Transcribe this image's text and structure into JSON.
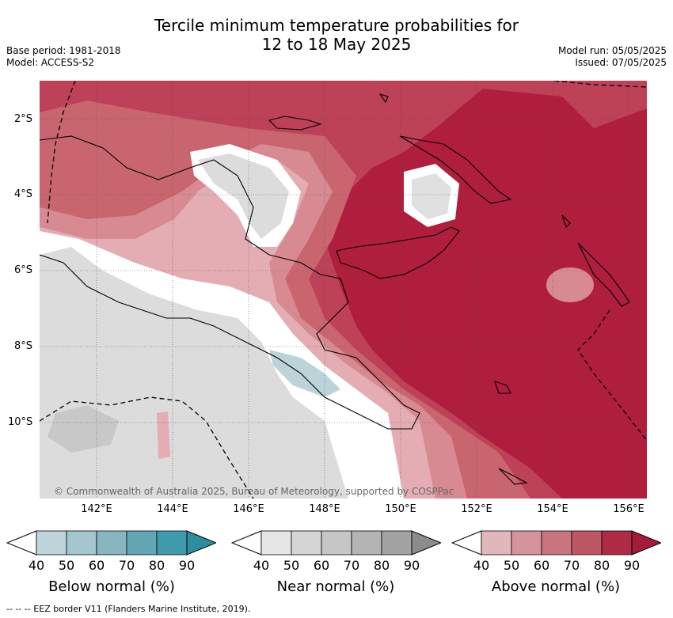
{
  "header": {
    "title_line1": "Tercile minimum temperature probabilities for",
    "title_line2": "12 to 18 May 2025",
    "base_period": "Base period: 1981-2018",
    "model": "Model: ACCESS-S2",
    "model_run": "Model run: 05/05/2025",
    "issued": "Issued: 07/05/2025"
  },
  "map": {
    "copyright": "© Commonwealth of Australia 2025, Bureau of Meteorology, supported by COSPPac",
    "lat_labels": [
      "2°S",
      "4°S",
      "6°S",
      "8°S",
      "10°S"
    ],
    "lon_labels": [
      "142°E",
      "144°E",
      "146°E",
      "148°E",
      "150°E",
      "152°E",
      "154°E",
      "156°E"
    ]
  },
  "legend": {
    "ticks": [
      "40",
      "50",
      "60",
      "70",
      "80",
      "90"
    ],
    "bars": [
      {
        "title": "Below normal (%)",
        "colors": [
          "#bfd5dc",
          "#a4c6cf",
          "#87b6c1",
          "#62a6b4",
          "#3f9aab",
          "#2e8e9e"
        ]
      },
      {
        "title": "Near normal (%)",
        "colors": [
          "#e6e6e6",
          "#d5d5d5",
          "#c6c6c6",
          "#b4b4b4",
          "#a3a3a3",
          "#8c8c8c"
        ]
      },
      {
        "title": "Above normal (%)",
        "colors": [
          "#e2b6bd",
          "#d5949d",
          "#c9757f",
          "#bf5664",
          "#b02a45",
          "#a51c38"
        ]
      }
    ]
  },
  "footer": {
    "eez": "--  --  -- EEZ border V11 (Flanders Marine Institute, 2019)."
  },
  "colors": {
    "above_90": "#b01e3e",
    "above_80": "#bd4157",
    "above_70": "#c9656f",
    "above_60": "#d88a92",
    "above_50": "#e3adb3",
    "near": "#dcdcdc",
    "near_60": "#c8c8c8",
    "below_50": "#bcd3da"
  }
}
